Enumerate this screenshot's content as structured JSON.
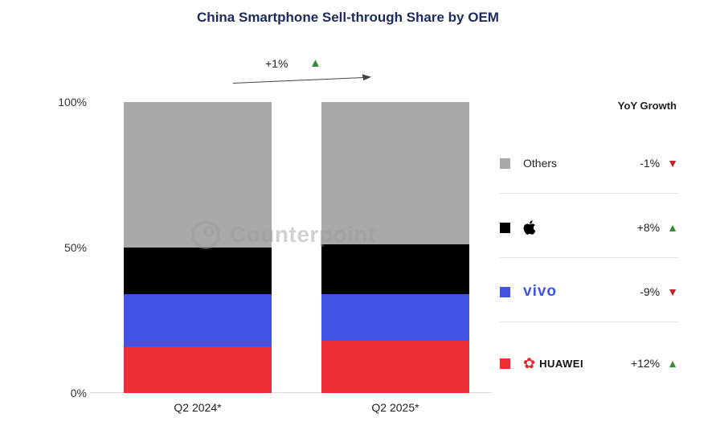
{
  "chart_data": {
    "type": "bar",
    "stacked": true,
    "title": "China Smartphone Sell-through Share by OEM",
    "categories": [
      "Q2 2024*",
      "Q2 2025*"
    ],
    "series": [
      {
        "name": "HUAWEI",
        "color": "#ee2e35",
        "values": [
          16,
          18
        ],
        "yoy": "+12%",
        "yoy_direction": "up"
      },
      {
        "name": "vivo",
        "color": "#4153e3",
        "values": [
          18,
          16
        ],
        "yoy": "-9%",
        "yoy_direction": "down"
      },
      {
        "name": "Apple",
        "color": "#000000",
        "values": [
          16,
          17
        ],
        "yoy": "+8%",
        "yoy_direction": "up"
      },
      {
        "name": "Others",
        "color": "#a9a9a9",
        "values": [
          50,
          49
        ],
        "yoy": "-1%",
        "yoy_direction": "down"
      }
    ],
    "yticks": [
      "100%",
      "50%",
      "0%"
    ],
    "ylim": [
      0,
      100
    ],
    "annotation": {
      "text": "+1%",
      "direction": "up"
    },
    "legend_position": "right",
    "grid": false,
    "watermark": "Counterpoint"
  },
  "legend": {
    "header": "YoY Growth",
    "rows": [
      {
        "label": "Others",
        "value": "-1%",
        "direction": "down",
        "color": "#a9a9a9"
      },
      {
        "label": "Apple",
        "value": "+8%",
        "direction": "up",
        "color": "#000000"
      },
      {
        "label": "vivo",
        "value": "-9%",
        "direction": "down",
        "color": "#4153e3"
      },
      {
        "label": "HUAWEI",
        "value": "+12%",
        "direction": "up",
        "color": "#ee2e35"
      }
    ]
  }
}
